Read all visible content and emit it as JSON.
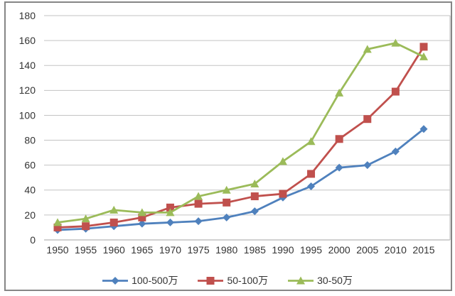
{
  "chart_data": {
    "type": "line",
    "title": "",
    "xlabel": "",
    "ylabel": "",
    "x": [
      "1950",
      "1955",
      "1960",
      "1965",
      "1970",
      "1975",
      "1980",
      "1985",
      "1990",
      "1995",
      "2000",
      "2005",
      "2010",
      "2015"
    ],
    "series": [
      {
        "name": "100-500万",
        "short": "100-500w",
        "color": "#4F81BD",
        "marker": "diamond",
        "values": [
          8,
          9,
          11,
          13,
          14,
          15,
          18,
          23,
          34,
          43,
          58,
          60,
          71,
          89
        ]
      },
      {
        "name": "50-100万",
        "short": "50-100w",
        "color": "#C0504D",
        "marker": "square",
        "values": [
          10,
          11,
          14,
          18,
          26,
          29,
          30,
          35,
          37,
          53,
          81,
          97,
          119,
          155
        ]
      },
      {
        "name": "30-50万",
        "short": "30-50w",
        "color": "#9BBB59",
        "marker": "triangle",
        "values": [
          14,
          17,
          24,
          22,
          22,
          35,
          40,
          45,
          63,
          79,
          118,
          153,
          158,
          147
        ]
      }
    ],
    "ylim": [
      0,
      180
    ],
    "yticks": [
      0,
      20,
      40,
      60,
      80,
      100,
      120,
      140,
      160,
      180
    ],
    "grid": "horizontal",
    "legend_position": "bottom"
  },
  "style": {
    "frame_border_color": "#868686",
    "grid_color": "#C3C3C3",
    "axis_line_color": "#A3A3A3",
    "plot_right_border_color": "#B5B5B5",
    "tick_text_color": "#333333",
    "background": "#FFFFFF"
  }
}
